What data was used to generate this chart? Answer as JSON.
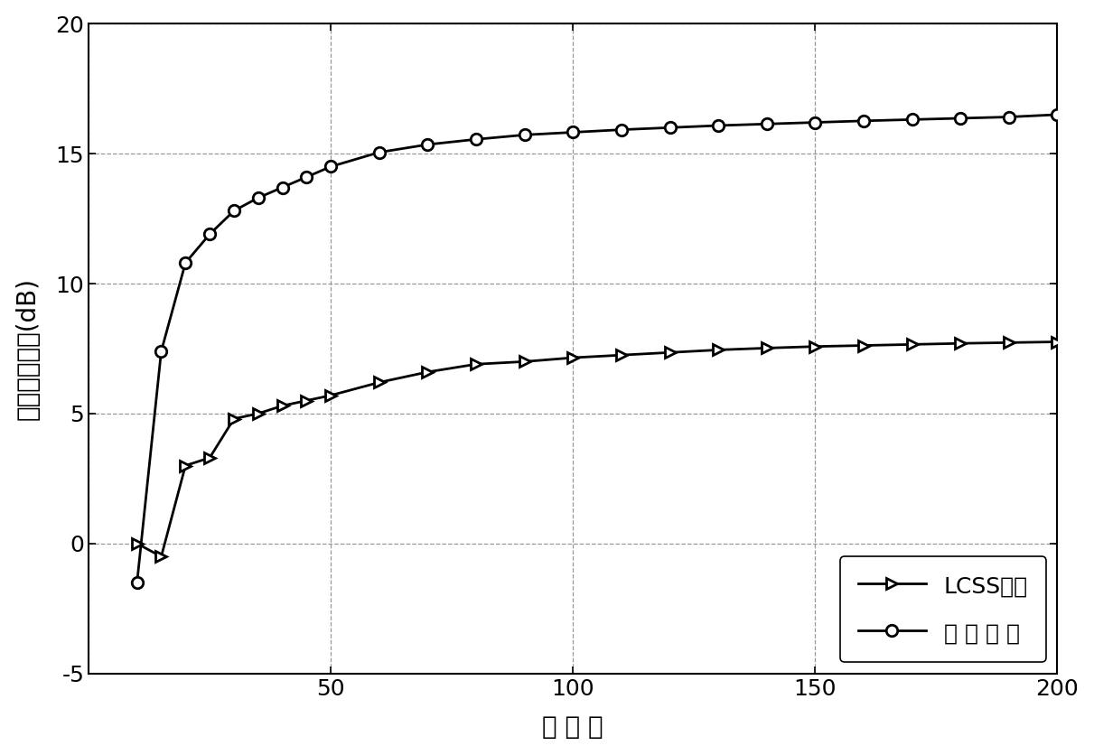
{
  "lcss_x": [
    10,
    15,
    20,
    25,
    30,
    35,
    40,
    45,
    50,
    60,
    70,
    80,
    90,
    100,
    110,
    120,
    130,
    140,
    150,
    160,
    170,
    180,
    190,
    200
  ],
  "lcss_y": [
    0.0,
    -0.5,
    3.0,
    3.3,
    4.8,
    5.0,
    5.3,
    5.5,
    5.7,
    6.2,
    6.6,
    6.9,
    7.0,
    7.15,
    7.25,
    7.35,
    7.45,
    7.52,
    7.58,
    7.62,
    7.66,
    7.7,
    7.73,
    7.76
  ],
  "proposed_x": [
    10,
    15,
    20,
    25,
    30,
    35,
    40,
    45,
    50,
    60,
    70,
    80,
    90,
    100,
    110,
    120,
    130,
    140,
    150,
    160,
    170,
    180,
    190,
    200
  ],
  "proposed_y": [
    -1.5,
    7.4,
    10.8,
    11.9,
    12.8,
    13.3,
    13.7,
    14.1,
    14.5,
    15.05,
    15.35,
    15.55,
    15.72,
    15.82,
    15.92,
    16.0,
    16.08,
    16.14,
    16.2,
    16.26,
    16.31,
    16.36,
    16.41,
    16.5
  ],
  "xlim": [
    0,
    200
  ],
  "ylim": [
    -5,
    20
  ],
  "xticks": [
    0,
    50,
    100,
    150,
    200
  ],
  "yticks": [
    -5,
    0,
    5,
    10,
    15,
    20
  ],
  "xlabel": "快 拍 数",
  "ylabel": "输出信干噪比(dB)",
  "legend_lcss": "LCSS方法",
  "legend_proposed": "所 提 方 法",
  "line_color": "#000000",
  "bg_color": "#ffffff",
  "grid_color": "#999999",
  "marker_size": 9,
  "line_width": 2.0
}
